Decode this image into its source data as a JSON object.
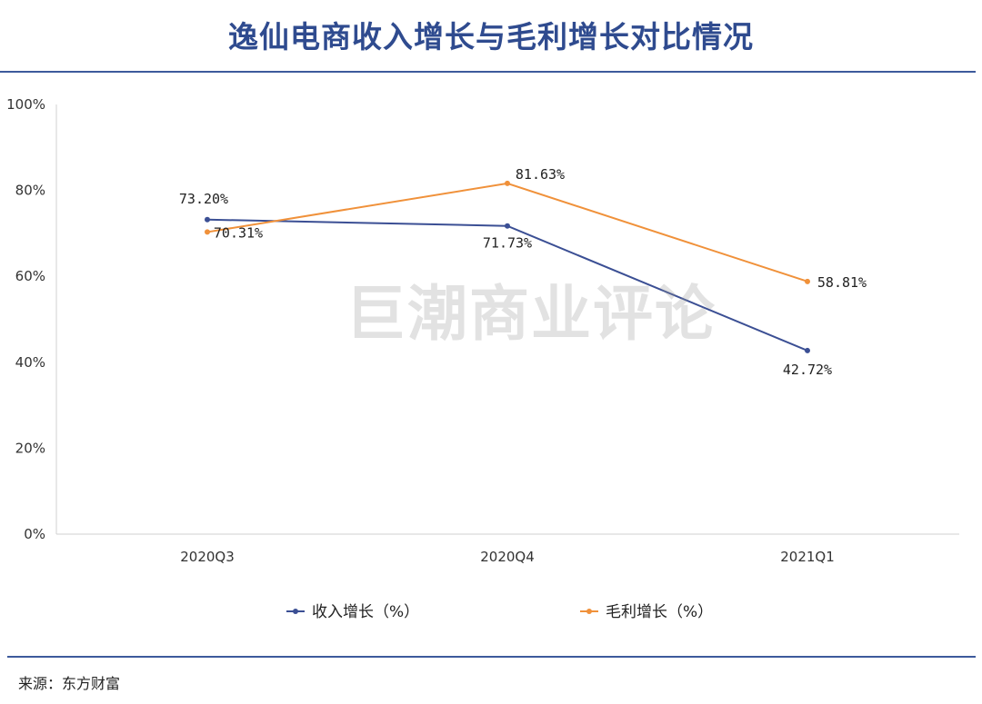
{
  "title": "逸仙电商收入增长与毛利增长对比情况",
  "source": "来源：东方财富",
  "watermark": "巨潮商业评论",
  "chart_data": {
    "type": "line",
    "categories": [
      "2020Q3",
      "2020Q4",
      "2021Q1"
    ],
    "series": [
      {
        "name": "收入增长（%）",
        "values": [
          73.2,
          71.73,
          42.72
        ],
        "labels": [
          "73.20%",
          "71.73%",
          "42.72%"
        ],
        "color": "#3b4f94"
      },
      {
        "name": "毛利增长（%）",
        "values": [
          70.31,
          81.63,
          58.81
        ],
        "labels": [
          "70.31%",
          "81.63%",
          "58.81%"
        ],
        "color": "#f0913a"
      }
    ],
    "ylim": [
      0,
      100
    ],
    "yticks": [
      "0%",
      "20%",
      "40%",
      "60%",
      "80%",
      "100%"
    ],
    "grid": false,
    "legend": "bottom"
  }
}
